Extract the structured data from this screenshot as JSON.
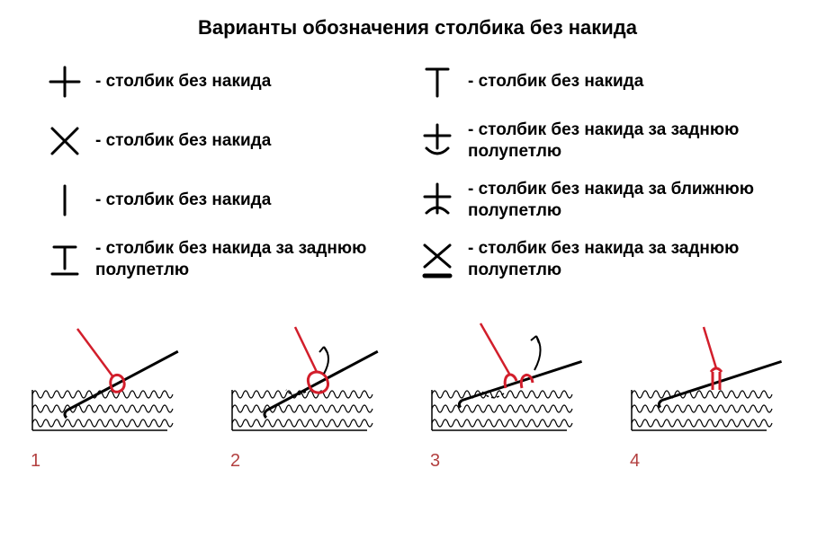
{
  "title": "Варианты обозначения столбика без накида",
  "colors": {
    "stroke": "#000000",
    "yarn": "#d21e2b",
    "stepnum": "#b34040",
    "bg": "#ffffff"
  },
  "stroke_width": 3,
  "left": [
    {
      "sym": "plus",
      "label": "- столбик без накида"
    },
    {
      "sym": "x",
      "label": "- столбик без накида"
    },
    {
      "sym": "bar",
      "label": "- столбик без накида"
    },
    {
      "sym": "t_under",
      "label": "- столбик без накида за заднюю полупетлю"
    }
  ],
  "right": [
    {
      "sym": "T",
      "label": "- столбик без накида"
    },
    {
      "sym": "plus_arc_down",
      "label": "- столбик без накида за заднюю полупетлю"
    },
    {
      "sym": "plus_arc_up",
      "label": "- столбик без накида за ближнюю полупетлю"
    },
    {
      "sym": "x_under",
      "label": "- столбик без накида за заднюю полупетлю"
    }
  ],
  "steps": [
    "1",
    "2",
    "3",
    "4"
  ]
}
